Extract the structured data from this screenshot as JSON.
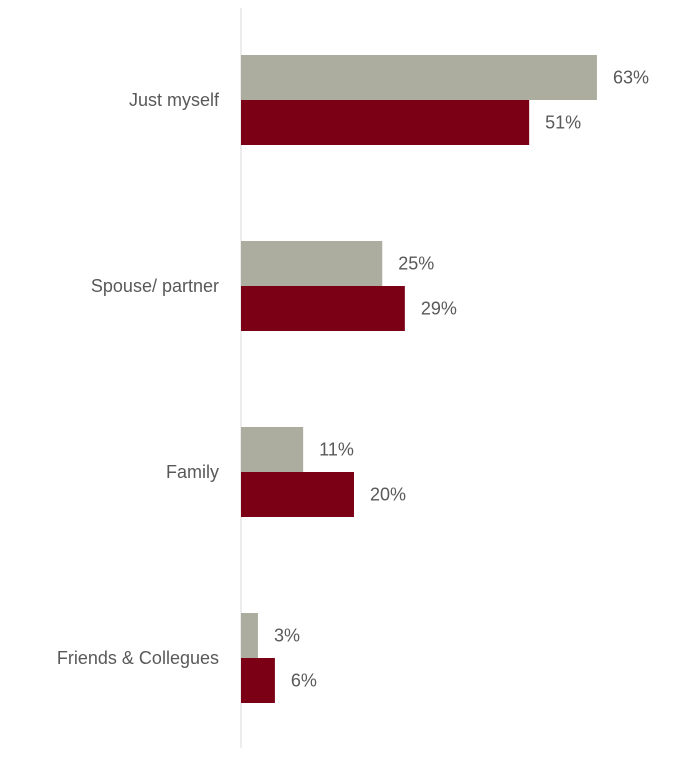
{
  "chart_data": {
    "type": "bar",
    "orientation": "horizontal",
    "title": "",
    "xlabel": "",
    "ylabel": "",
    "categories": [
      "Just myself",
      "Spouse/ partner",
      "Family",
      "Friends & Collegues"
    ],
    "series": [
      {
        "color": "#adad9f",
        "values": [
          63,
          25,
          11,
          3
        ],
        "labels": [
          "63%",
          "25%",
          "11%",
          "3%"
        ]
      },
      {
        "color": "#7b0015",
        "values": [
          51,
          29,
          20,
          6
        ],
        "labels": [
          "51%",
          "29%",
          "20%",
          "6%"
        ]
      }
    ],
    "xlim": [
      0,
      100
    ],
    "value_suffix": "%",
    "grid": false,
    "legend": "none"
  }
}
